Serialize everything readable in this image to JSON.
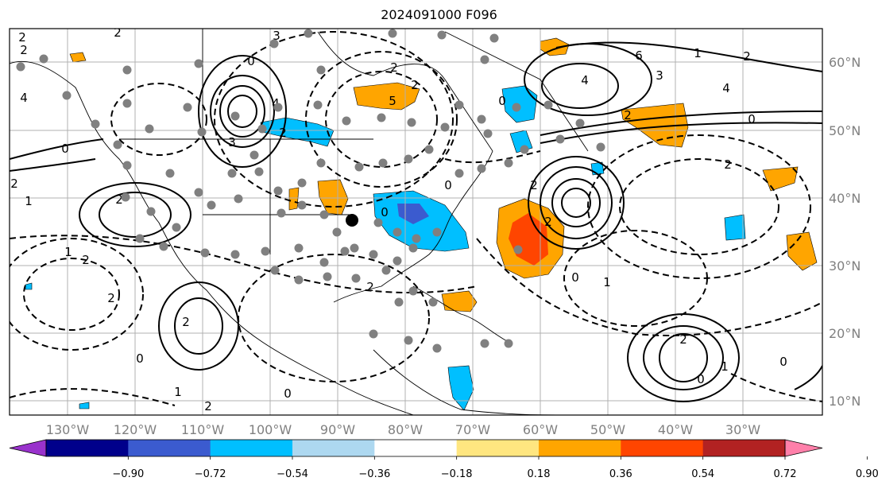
{
  "title": "2024091000 F096",
  "map": {
    "lon_ticks": [
      "130°W",
      "120°W",
      "110°W",
      "100°W",
      "90°W",
      "80°W",
      "70°W",
      "60°W",
      "50°W",
      "40°W",
      "30°W"
    ],
    "lat_ticks": [
      "60°N",
      "50°N",
      "40°N",
      "30°N",
      "20°N",
      "10°N"
    ],
    "grid": true,
    "station_dot_color": "#808080",
    "marker_color": "#000000"
  },
  "colorbar": {
    "ticks": [
      "−0.90",
      "−0.72",
      "−0.54",
      "−0.36",
      "−0.18",
      "0.18",
      "0.36",
      "0.54",
      "0.72",
      "0.90"
    ],
    "colors": [
      "#9932cc",
      "#00008b",
      "#3b5bcf",
      "#00bfff",
      "#add8f0",
      "#ffffff",
      "#ffe680",
      "#ffa500",
      "#ff4500",
      "#b22222",
      "#ff80aa"
    ],
    "extend": "both"
  },
  "contour_labels": [
    "2",
    "2",
    "2",
    "4",
    "0",
    "3",
    "4",
    "2",
    "2",
    "5",
    "6",
    "0",
    "4",
    "3",
    "4",
    "2",
    "0",
    "2",
    "1",
    "2",
    "0",
    "1",
    "2",
    "2",
    "3",
    "2",
    "0",
    "0",
    "2",
    "2",
    "1",
    "2",
    "2",
    "0",
    "2",
    "1",
    "2",
    "2",
    "0",
    "0",
    "1",
    "0",
    "0",
    "1",
    "2"
  ]
}
